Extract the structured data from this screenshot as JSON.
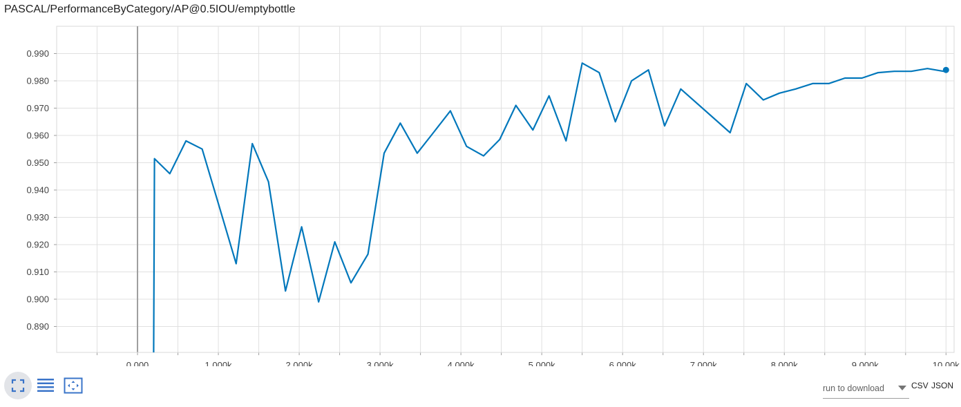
{
  "title": "PASCAL/PerformanceByCategory/AP@0.5IOU/emptybottle",
  "chart_data": {
    "type": "line",
    "title": "PASCAL/PerformanceByCategory/AP@0.5IOU/emptybottle",
    "xlabel": "",
    "ylabel": "",
    "xlim": [
      -1000,
      10100
    ],
    "ylim": [
      0.8805,
      1.0
    ],
    "grid": true,
    "x_ticks": [
      0,
      1000,
      2000,
      3000,
      4000,
      5000,
      6000,
      7000,
      8000,
      9000,
      10000
    ],
    "x_tick_labels": [
      "0.000",
      "1.000k",
      "2.000k",
      "3.000k",
      "4.000k",
      "5.000k",
      "6.000k",
      "7.000k",
      "8.000k",
      "9.000k",
      "10.00k"
    ],
    "y_ticks": [
      0.89,
      0.9,
      0.91,
      0.92,
      0.93,
      0.94,
      0.95,
      0.96,
      0.97,
      0.98,
      0.99
    ],
    "y_tick_labels": [
      "0.890",
      "0.900",
      "0.910",
      "0.920",
      "0.930",
      "0.940",
      "0.950",
      "0.960",
      "0.970",
      "0.980",
      "0.990"
    ],
    "series": [
      {
        "color": "#0077bb",
        "x": [
          200,
          210,
          400,
          600,
          800,
          1000,
          1220,
          1420,
          1620,
          1830,
          2030,
          2240,
          2440,
          2640,
          2850,
          3050,
          3250,
          3460,
          3660,
          3870,
          4070,
          4280,
          4480,
          4680,
          4890,
          5090,
          5300,
          5500,
          5710,
          5910,
          6110,
          6320,
          6520,
          6720,
          7330,
          7530,
          7740,
          7940,
          8140,
          8350,
          8550,
          8750,
          8960,
          9160,
          9360,
          9570,
          9770,
          9970,
          10000
        ],
        "y": [
          0.8805,
          0.9515,
          0.946,
          0.958,
          0.955,
          0.935,
          0.913,
          0.957,
          0.943,
          0.903,
          0.9265,
          0.899,
          0.921,
          0.906,
          0.9165,
          0.9535,
          0.9645,
          0.9535,
          0.961,
          0.969,
          0.956,
          0.9525,
          0.9585,
          0.971,
          0.962,
          0.9745,
          0.958,
          0.9865,
          0.983,
          0.965,
          0.98,
          0.984,
          0.9635,
          0.977,
          0.961,
          0.979,
          0.973,
          0.9755,
          0.977,
          0.979,
          0.979,
          0.981,
          0.981,
          0.983,
          0.9835,
          0.9835,
          0.9845,
          0.9835,
          0.984
        ]
      }
    ]
  },
  "controls": {
    "run_select_value": "run to download",
    "csv_label": "CSV",
    "json_label": "JSON"
  },
  "icons": {
    "expand": "fullscreen-icon",
    "lines": "list-icon",
    "fit": "fit-domain-icon"
  }
}
